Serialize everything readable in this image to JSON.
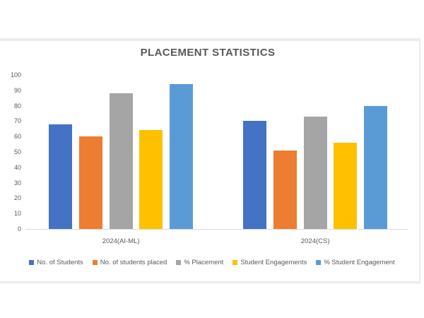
{
  "title": "PLACEMENT STATISTICS",
  "chart_data": {
    "type": "bar",
    "title": "PLACEMENT STATISTICS",
    "categories": [
      "2024(AI-ML)",
      "2024(CS)"
    ],
    "series": [
      {
        "name": "No. of Students",
        "color": "#4472C4",
        "values": [
          68,
          70
        ]
      },
      {
        "name": "No. of students placed",
        "color": "#ED7D31",
        "values": [
          60,
          51
        ]
      },
      {
        "name": "% Placement",
        "color": "#A5A5A5",
        "values": [
          88,
          73
        ]
      },
      {
        "name": "Student Engagements",
        "color": "#FFC000",
        "values": [
          64,
          56
        ]
      },
      {
        "name": "% Student Engagement",
        "color": "#5B9BD5",
        "values": [
          94,
          80
        ]
      }
    ],
    "xlabel": "",
    "ylabel": "",
    "ylim": [
      0,
      100
    ],
    "yticks": [
      0,
      10,
      20,
      30,
      40,
      50,
      60,
      70,
      80,
      90,
      100
    ],
    "grid": false,
    "legend_position": "bottom",
    "frame_border_color": "#ececec",
    "axis_line_color": "#d9d9d9",
    "text_color": "#595959",
    "background_color": "#ffffff"
  }
}
